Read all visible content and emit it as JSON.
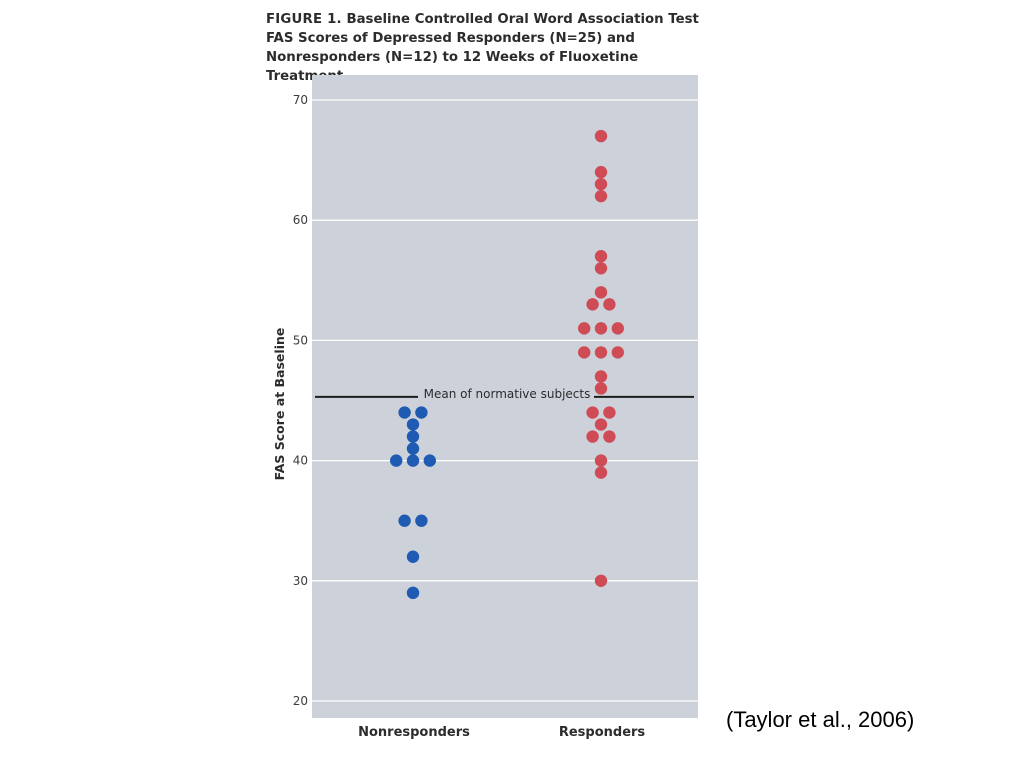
{
  "figure": {
    "title_label": "FIGURE 1.",
    "title_text": "Baseline Controlled Oral Word Association Test FAS Scores of Depressed Responders (N=25) and Nonresponders (N=12) to 12 Weeks of Fluoxetine Treatment"
  },
  "citation": "(Taylor et al., 2006)",
  "chart_data": {
    "type": "scatter",
    "ylabel": "FAS Score at Baseline",
    "xlabel": "",
    "ylim": [
      20,
      70
    ],
    "yticks": [
      20,
      30,
      40,
      50,
      60,
      70
    ],
    "grid": true,
    "categories": [
      "Nonresponders",
      "Responders"
    ],
    "reference_line": {
      "label": "Mean of normative subjects",
      "value": 45.3
    },
    "series": [
      {
        "name": "Nonresponders",
        "color": "#1f5bb3",
        "values": [
          44,
          44,
          43,
          42,
          41,
          40,
          40,
          40,
          35,
          35,
          32,
          29
        ]
      },
      {
        "name": "Responders",
        "color": "#cf4c56",
        "values": [
          67,
          64,
          63,
          62,
          57,
          56,
          54,
          53,
          53,
          51,
          51,
          51,
          49,
          49,
          49,
          47,
          46,
          44,
          44,
          43,
          42,
          42,
          40,
          39,
          30
        ]
      }
    ],
    "background_color": "#cdd2da",
    "grid_color": "#ffffff"
  }
}
